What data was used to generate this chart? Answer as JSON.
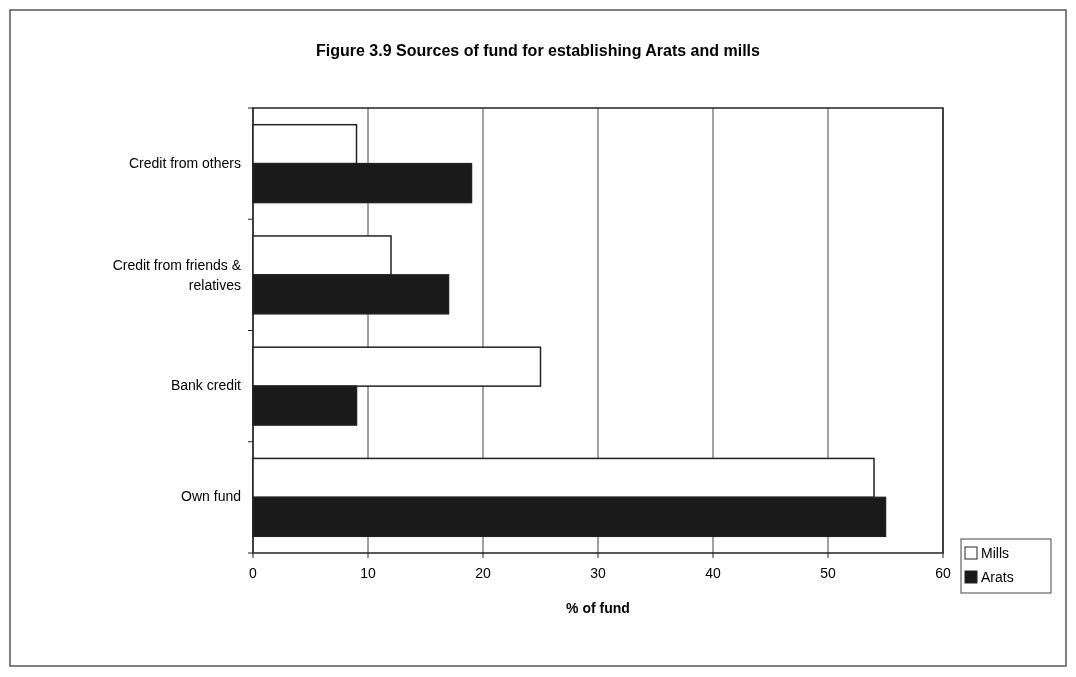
{
  "chart_data": {
    "type": "bar",
    "orientation": "horizontal",
    "title": "Figure 3.9  Sources of fund for establishing Arats and mills",
    "xlabel": "% of fund",
    "categories": [
      "Credit from others",
      "Credit from friends & relatives",
      "Bank credit",
      "Own fund"
    ],
    "series": [
      {
        "name": "Mills",
        "color": "#ffffff",
        "values": [
          9,
          12,
          25,
          54
        ]
      },
      {
        "name": "Arats",
        "color": "#1a1a1a",
        "values": [
          19,
          17,
          9,
          55
        ]
      }
    ],
    "xlim": [
      0,
      60
    ],
    "xticks": [
      0,
      10,
      20,
      30,
      40,
      50,
      60
    ],
    "grid": "x",
    "legend": "bottom right"
  }
}
